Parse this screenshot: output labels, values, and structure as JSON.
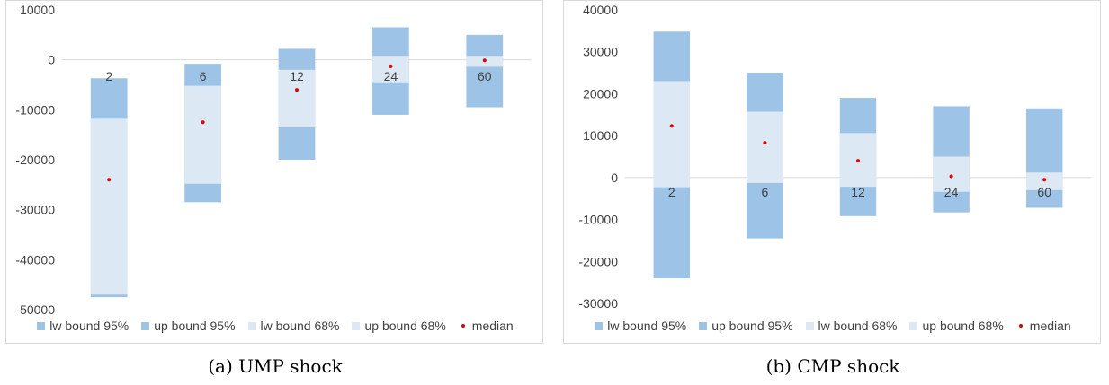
{
  "colors": {
    "band95": "#9dc3e6",
    "band68": "#dde8f5",
    "median": "#e00000",
    "axis": "#d9d9d9",
    "text": "#404040"
  },
  "legend": [
    "lw bound 95%",
    "up bound 95%",
    "lw bound 68%",
    "up bound 68%",
    "median"
  ],
  "captions": [
    "(a) UMP shock",
    "(b) CMP shock"
  ],
  "chart_data": [
    {
      "type": "bar",
      "title": "",
      "xlabel": "",
      "ylabel": "",
      "ylim": [
        -50000,
        10000
      ],
      "yticks": [
        10000,
        0,
        -10000,
        -20000,
        -30000,
        -40000,
        -50000
      ],
      "ytick_labels": [
        "10000",
        "0",
        "-10000",
        "-20000",
        "-30000",
        "-40000",
        "-50000"
      ],
      "categories": [
        "2",
        "6",
        "12",
        "24",
        "60"
      ],
      "series": [
        {
          "name": "lw bound 95%",
          "values": [
            -47500,
            -28500,
            -20000,
            -11000,
            -9500
          ]
        },
        {
          "name": "up bound 95%",
          "values": [
            -3700,
            -800,
            2200,
            6500,
            5000
          ]
        },
        {
          "name": "lw bound 68%",
          "values": [
            -11800,
            -24800,
            -13500,
            -4500,
            -1400
          ]
        },
        {
          "name": "up bound 68%",
          "values": [
            -47000,
            -5200,
            -2000,
            800,
            800
          ]
        },
        {
          "name": "median",
          "values": [
            -24000,
            -12500,
            -6000,
            -1300,
            -100
          ]
        }
      ]
    },
    {
      "type": "bar",
      "title": "",
      "xlabel": "",
      "ylabel": "",
      "ylim": [
        -30000,
        40000
      ],
      "yticks": [
        40000,
        30000,
        20000,
        10000,
        0,
        -10000,
        -20000,
        -30000
      ],
      "ytick_labels": [
        "40000",
        "30000",
        "20000",
        "10000",
        "0",
        "-10000",
        "-20000",
        "-30000"
      ],
      "categories": [
        "2",
        "6",
        "12",
        "24",
        "60"
      ],
      "series": [
        {
          "name": "lw bound 95%",
          "values": [
            -24000,
            -14500,
            -9200,
            -8300,
            -7200
          ]
        },
        {
          "name": "up bound 95%",
          "values": [
            34800,
            25000,
            19000,
            17000,
            16500
          ]
        },
        {
          "name": "lw bound 68%",
          "values": [
            -2300,
            -1300,
            -2200,
            -3400,
            -3000
          ]
        },
        {
          "name": "up bound 68%",
          "values": [
            23000,
            15700,
            10600,
            5000,
            1200
          ]
        },
        {
          "name": "median",
          "values": [
            12300,
            8300,
            4000,
            300,
            -500
          ]
        }
      ]
    }
  ]
}
